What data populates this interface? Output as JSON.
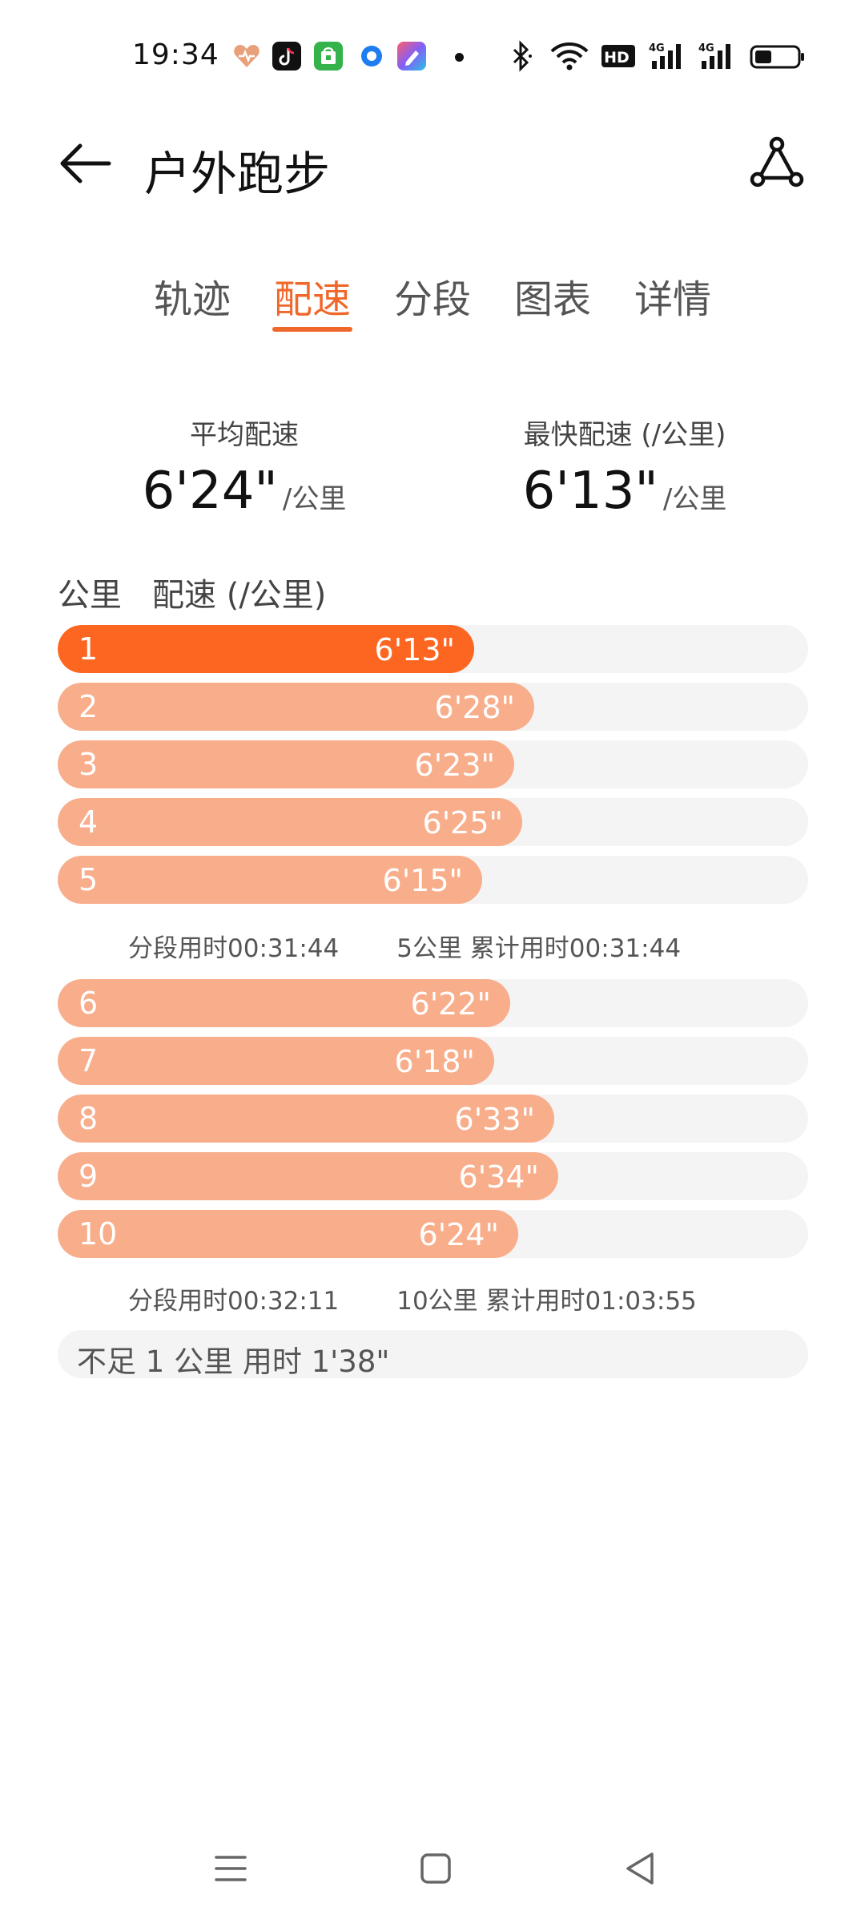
{
  "status_bar": {
    "time": "19:34",
    "icons": [
      "heart-icon",
      "tiktok-icon",
      "store-icon",
      "circle-app-icon",
      "pencil-app-icon",
      "dot-icon",
      "bluetooth-icon",
      "wifi-icon",
      "hd-icon",
      "signal-4g-icon",
      "signal-4g-icon-2",
      "battery-icon"
    ],
    "hd_label": "HD",
    "net_label_1": "4G",
    "net_label_2": "4G"
  },
  "header": {
    "title": "户外跑步",
    "back_icon": "arrow-left-icon",
    "share_icon": "route-share-icon"
  },
  "tabs": [
    {
      "label": "轨迹",
      "active": false
    },
    {
      "label": "配速",
      "active": true
    },
    {
      "label": "分段",
      "active": false
    },
    {
      "label": "图表",
      "active": false
    },
    {
      "label": "详情",
      "active": false
    }
  ],
  "summary": {
    "avg_label": "平均配速",
    "avg_value": "6'24\"",
    "avg_unit": "/公里",
    "fast_label": "最快配速 (/公里)",
    "fast_value": "6'13\"",
    "fast_unit": "/公里"
  },
  "list_header": {
    "km_label": "公里",
    "pace_label": "配速 (/公里)"
  },
  "splits": [
    {
      "km": "1",
      "pace": "6'13\"",
      "seconds": 373,
      "fastest": true
    },
    {
      "km": "2",
      "pace": "6'28\"",
      "seconds": 388,
      "fastest": false
    },
    {
      "km": "3",
      "pace": "6'23\"",
      "seconds": 383,
      "fastest": false
    },
    {
      "km": "4",
      "pace": "6'25\"",
      "seconds": 385,
      "fastest": false
    },
    {
      "km": "5",
      "pace": "6'15\"",
      "seconds": 375,
      "fastest": false
    },
    {
      "km": "6",
      "pace": "6'22\"",
      "seconds": 382,
      "fastest": false
    },
    {
      "km": "7",
      "pace": "6'18\"",
      "seconds": 378,
      "fastest": false
    },
    {
      "km": "8",
      "pace": "6'33\"",
      "seconds": 393,
      "fastest": false
    },
    {
      "km": "9",
      "pace": "6'34\"",
      "seconds": 394,
      "fastest": false
    },
    {
      "km": "10",
      "pace": "6'24\"",
      "seconds": 384,
      "fastest": false
    }
  ],
  "segments": [
    {
      "split_time": "分段用时00:31:44",
      "cumulative": "5公里 累计用时00:31:44"
    },
    {
      "split_time": "分段用时00:32:11",
      "cumulative": "10公里 累计用时01:03:55"
    }
  ],
  "remainder": {
    "text": "不足 1 公里 用时 1'38\""
  },
  "colors": {
    "accent": "#f0672a",
    "fastest_bar": "#fd6620",
    "bar": "#f8ad8b",
    "track": "#f4f4f4"
  },
  "nav_bar": {
    "icons": [
      "menu-icon",
      "home-icon",
      "back-triangle-icon"
    ]
  }
}
